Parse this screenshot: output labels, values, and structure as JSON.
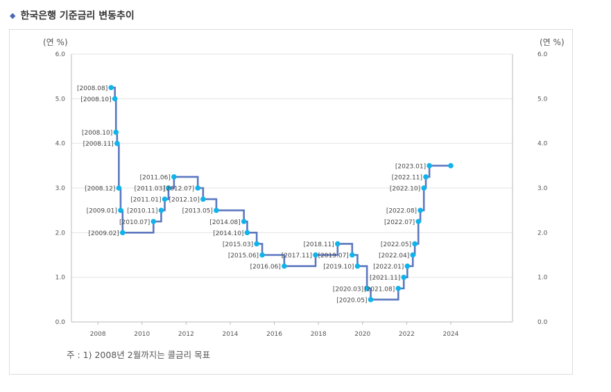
{
  "header": {
    "title": "한국은행 기준금리 변동추이",
    "bullet_icon": "diamond-icon"
  },
  "footnote": "주 : 1) 2008년 2월까지는 콜금리 목표",
  "chart_data": {
    "type": "line",
    "step": true,
    "ylabel_left": "(연 %)",
    "ylabel_right": "(연 %)",
    "ylim": [
      0,
      6
    ],
    "yticks": [
      "0.0",
      "1.0",
      "2.0",
      "3.0",
      "4.0",
      "5.0",
      "6.0"
    ],
    "xlim": [
      2006.8,
      2026.8
    ],
    "xticks": [
      "2008",
      "2010",
      "2012",
      "2014",
      "2016",
      "2018",
      "2020",
      "2022",
      "2024"
    ],
    "grid": "horizontal",
    "line_color": "#5b77bf",
    "point_color": "#10b4ea",
    "points": [
      {
        "label": "[2008.08]",
        "x": 2008.6,
        "y": 5.25
      },
      {
        "label": "[2008.10]",
        "x": 2008.77,
        "y": 5.0
      },
      {
        "label": "[2008.10]",
        "x": 2008.82,
        "y": 4.25
      },
      {
        "label": "[2008.11]",
        "x": 2008.87,
        "y": 4.0
      },
      {
        "label": "[2008.12]",
        "x": 2008.95,
        "y": 3.0
      },
      {
        "label": "[2009.01]",
        "x": 2009.03,
        "y": 2.5
      },
      {
        "label": "[2009.02]",
        "x": 2009.12,
        "y": 2.0
      },
      {
        "label": "[2010.07]",
        "x": 2010.52,
        "y": 2.25
      },
      {
        "label": "[2010.11]",
        "x": 2010.87,
        "y": 2.5
      },
      {
        "label": "[2011.01]",
        "x": 2011.03,
        "y": 2.75
      },
      {
        "label": "[2011.03]",
        "x": 2011.2,
        "y": 3.0
      },
      {
        "label": "[2011.06]",
        "x": 2011.45,
        "y": 3.25
      },
      {
        "label": "[2012.07]",
        "x": 2012.53,
        "y": 3.0
      },
      {
        "label": "[2012.10]",
        "x": 2012.77,
        "y": 2.75
      },
      {
        "label": "[2013.05]",
        "x": 2013.37,
        "y": 2.5
      },
      {
        "label": "[2014.08]",
        "x": 2014.62,
        "y": 2.25
      },
      {
        "label": "[2014.10]",
        "x": 2014.77,
        "y": 2.0
      },
      {
        "label": "[2015.03]",
        "x": 2015.2,
        "y": 1.75
      },
      {
        "label": "[2015.06]",
        "x": 2015.45,
        "y": 1.5
      },
      {
        "label": "[2016.06]",
        "x": 2016.45,
        "y": 1.25
      },
      {
        "label": "[2017.11]",
        "x": 2017.87,
        "y": 1.5
      },
      {
        "label": "[2018.11]",
        "x": 2018.87,
        "y": 1.75
      },
      {
        "label": "[2019.07]",
        "x": 2019.53,
        "y": 1.5
      },
      {
        "label": "[2019.10]",
        "x": 2019.77,
        "y": 1.25
      },
      {
        "label": "[2020.03]",
        "x": 2020.2,
        "y": 0.75
      },
      {
        "label": "[2020.05]",
        "x": 2020.37,
        "y": 0.5
      },
      {
        "label": "[2021.08]",
        "x": 2021.62,
        "y": 0.75
      },
      {
        "label": "[2021.11]",
        "x": 2021.87,
        "y": 1.0
      },
      {
        "label": "[2022.01]",
        "x": 2022.03,
        "y": 1.25
      },
      {
        "label": "[2022.04]",
        "x": 2022.28,
        "y": 1.5
      },
      {
        "label": "[2022.05]",
        "x": 2022.37,
        "y": 1.75
      },
      {
        "label": "[2022.07]",
        "x": 2022.53,
        "y": 2.25
      },
      {
        "label": "[2022.08]",
        "x": 2022.62,
        "y": 2.5
      },
      {
        "label": "[2022.10]",
        "x": 2022.78,
        "y": 3.0
      },
      {
        "label": "[2022.11]",
        "x": 2022.87,
        "y": 3.25
      },
      {
        "label": "[2023.01]",
        "x": 2023.03,
        "y": 3.5
      },
      {
        "label": "",
        "x": 2024.0,
        "y": 3.5
      }
    ]
  }
}
